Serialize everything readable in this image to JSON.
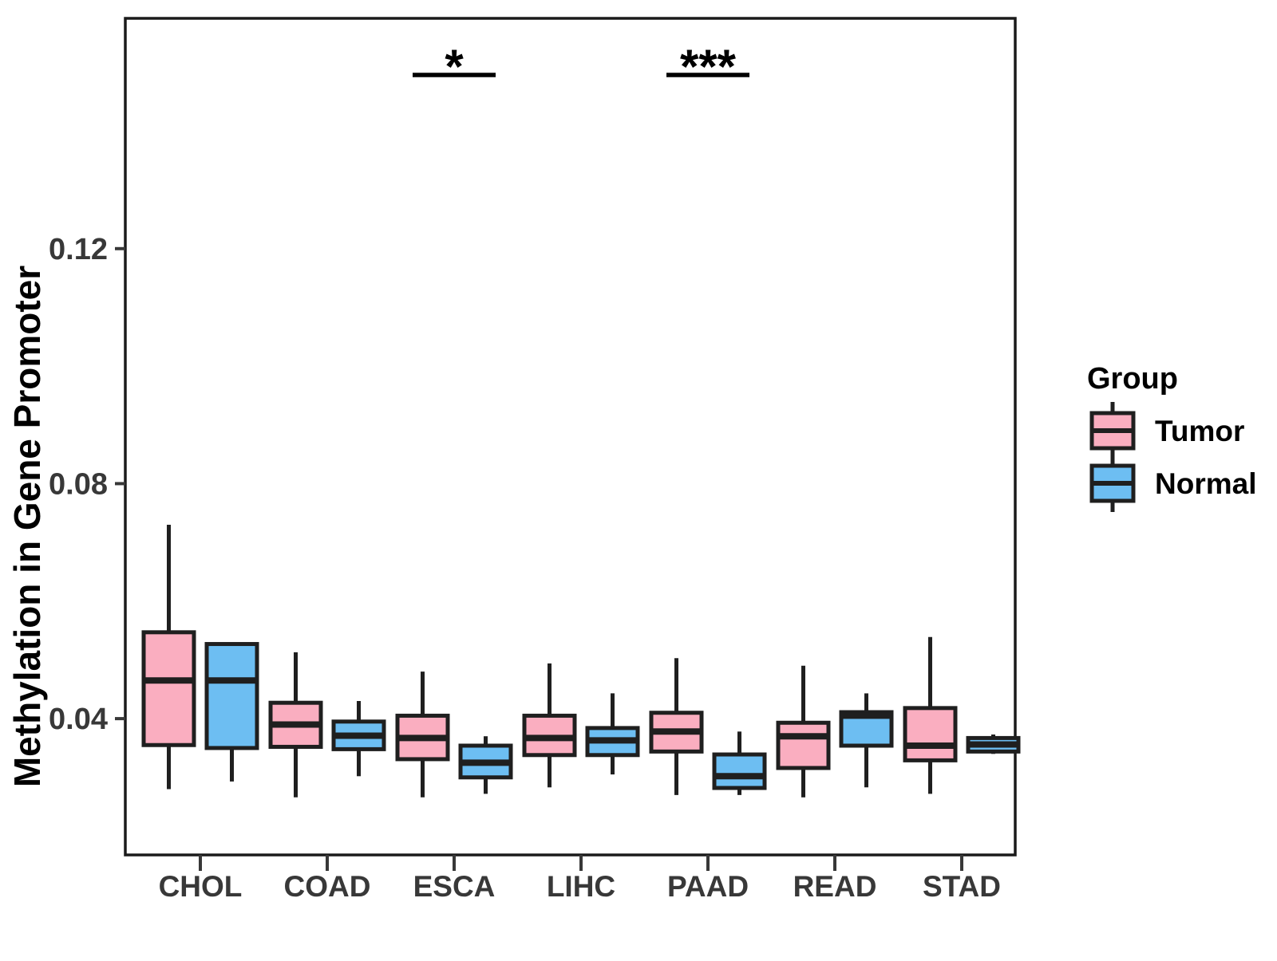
{
  "chart_data": {
    "type": "boxplot",
    "title": "",
    "xlabel": "",
    "ylabel": "Methylation in Gene Promoter",
    "grid": false,
    "legend_position": "right",
    "panel_border": true,
    "categories": [
      "CHOL",
      "COAD",
      "ESCA",
      "LIHC",
      "PAAD",
      "READ",
      "STAD"
    ],
    "yticks": [
      0.04,
      0.08,
      0.12
    ],
    "ytick_labels": [
      "0.04",
      "0.08",
      "0.12"
    ],
    "ylim": [
      0.0168,
      0.1592
    ],
    "legend": {
      "title": "Group",
      "entries": [
        {
          "label": "Tumor",
          "color": "#FAAEC0"
        },
        {
          "label": "Normal",
          "color": "#6DBEF2"
        }
      ]
    },
    "significance": [
      {
        "category": "ESCA",
        "label": "*"
      },
      {
        "category": "PAAD",
        "label": "***"
      }
    ],
    "series": [
      {
        "name": "Tumor",
        "color": "#FAAEC0",
        "stats": [
          {
            "category": "CHOL",
            "min": 0.028,
            "q1": 0.0355,
            "median": 0.0465,
            "q3": 0.0547,
            "max": 0.073
          },
          {
            "category": "COAD",
            "min": 0.0266,
            "q1": 0.0352,
            "median": 0.039,
            "q3": 0.0427,
            "max": 0.0513
          },
          {
            "category": "ESCA",
            "min": 0.0266,
            "q1": 0.0331,
            "median": 0.0367,
            "q3": 0.0405,
            "max": 0.048
          },
          {
            "category": "LIHC",
            "min": 0.0283,
            "q1": 0.0338,
            "median": 0.0367,
            "q3": 0.0405,
            "max": 0.0494
          },
          {
            "category": "PAAD",
            "min": 0.027,
            "q1": 0.0344,
            "median": 0.0378,
            "q3": 0.041,
            "max": 0.0503
          },
          {
            "category": "READ",
            "min": 0.0266,
            "q1": 0.0316,
            "median": 0.037,
            "q3": 0.0393,
            "max": 0.049
          },
          {
            "category": "STAD",
            "min": 0.0272,
            "q1": 0.0329,
            "median": 0.0354,
            "q3": 0.0418,
            "max": 0.0539
          }
        ]
      },
      {
        "name": "Normal",
        "color": "#6DBEF2",
        "stats": [
          {
            "category": "CHOL",
            "min": 0.0293,
            "q1": 0.035,
            "median": 0.0465,
            "q3": 0.0527,
            "max": 0.0527
          },
          {
            "category": "COAD",
            "min": 0.0302,
            "q1": 0.0348,
            "median": 0.0371,
            "q3": 0.0395,
            "max": 0.043
          },
          {
            "category": "ESCA",
            "min": 0.0272,
            "q1": 0.03,
            "median": 0.0325,
            "q3": 0.0354,
            "max": 0.037
          },
          {
            "category": "LIHC",
            "min": 0.0305,
            "q1": 0.0338,
            "median": 0.0363,
            "q3": 0.0384,
            "max": 0.0443
          },
          {
            "category": "PAAD",
            "min": 0.027,
            "q1": 0.0282,
            "median": 0.0302,
            "q3": 0.0339,
            "max": 0.0378
          },
          {
            "category": "READ",
            "min": 0.0283,
            "q1": 0.0354,
            "median": 0.0405,
            "q3": 0.0411,
            "max": 0.0443
          },
          {
            "category": "STAD",
            "min": 0.034,
            "q1": 0.0344,
            "median": 0.0356,
            "q3": 0.0367,
            "max": 0.0373
          }
        ]
      }
    ],
    "colors": {
      "stroke": "#1F1F1F",
      "panel_border": "#1A1A1A",
      "tick_text": "#383838",
      "axis_title": "#000000",
      "significance": "#000000"
    }
  }
}
